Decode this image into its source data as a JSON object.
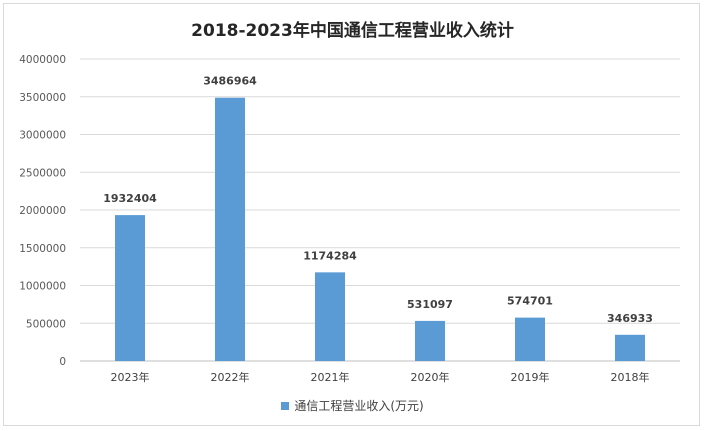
{
  "chart_data": {
    "type": "bar",
    "title": "2018-2023年中国通信工程营业收入统计",
    "categories": [
      "2023年",
      "2022年",
      "2021年",
      "2020年",
      "2019年",
      "2018年"
    ],
    "series": [
      {
        "name": "通信工程营业收入(万元)",
        "values": [
          1932404,
          3486964,
          1174284,
          531097,
          574701,
          346933
        ],
        "color": "#5b9bd5"
      }
    ],
    "data_labels": [
      "1932404",
      "3486964",
      "1174284",
      "531097",
      "574701",
      "346933"
    ],
    "ylim": [
      0,
      4000000
    ],
    "yticks": [
      0,
      500000,
      1000000,
      1500000,
      2000000,
      2500000,
      3000000,
      3500000,
      4000000
    ],
    "ytick_labels": [
      "0",
      "500000",
      "1000000",
      "1500000",
      "2000000",
      "2500000",
      "3000000",
      "3500000",
      "4000000"
    ],
    "grid": true,
    "legend": "bottom"
  }
}
